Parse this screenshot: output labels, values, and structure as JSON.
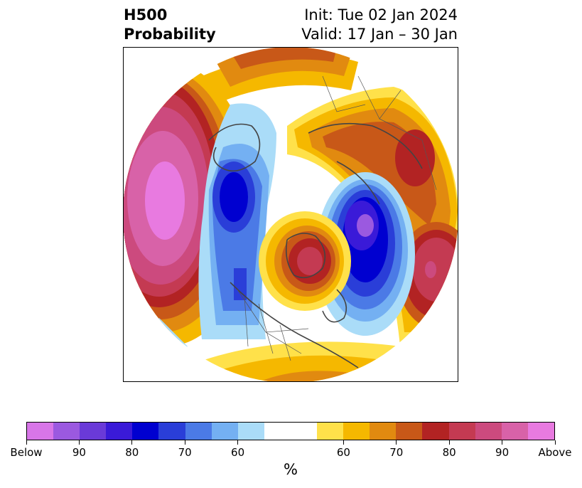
{
  "header": {
    "title_line1": "H500",
    "title_line2": "Probability",
    "init_label": "Init: Tue 02 Jan 2024",
    "valid_label": "Valid: 17 Jan – 30 Jan"
  },
  "colorbar": {
    "colors": [
      "#d876e8",
      "#9b59e0",
      "#6a3ad8",
      "#3a1ad8",
      "#0000d0",
      "#2a3ed8",
      "#4b7ae6",
      "#74b0f2",
      "#aadcf8",
      "#ffffff",
      "#ffffff",
      "#ffe14a",
      "#f5b800",
      "#e18a10",
      "#c85818",
      "#b22323",
      "#c43a52",
      "#cc4a7e",
      "#d862a8",
      "#e87ae0"
    ],
    "tick_labels": [
      {
        "text": "Below",
        "index": 0
      },
      {
        "text": "90",
        "index": 2
      },
      {
        "text": "80",
        "index": 4
      },
      {
        "text": "70",
        "index": 6
      },
      {
        "text": "60",
        "index": 8
      },
      {
        "text": "60",
        "index": 12
      },
      {
        "text": "70",
        "index": 14
      },
      {
        "text": "80",
        "index": 16
      },
      {
        "text": "90",
        "index": 18
      },
      {
        "text": "Above",
        "index": 20
      }
    ],
    "units_label": "%"
  }
}
